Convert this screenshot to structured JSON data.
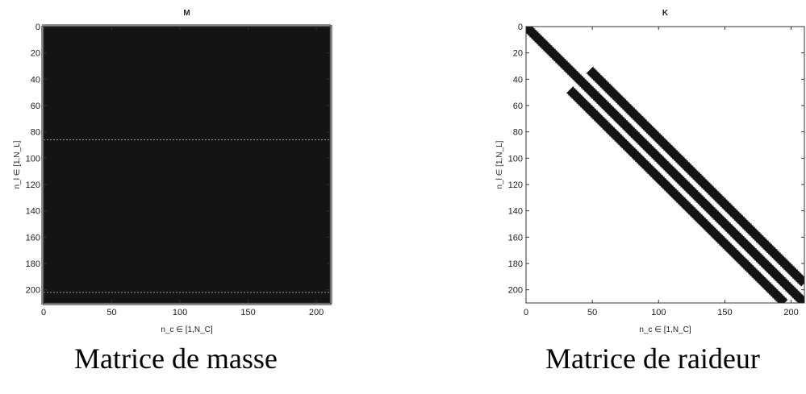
{
  "chart_data": [
    {
      "type": "heatmap",
      "title": "M",
      "xlabel": "n_c ∈ [1,N_C]",
      "ylabel": "n_l ∈ [1,N_L]",
      "xlim": [
        0,
        210
      ],
      "ylim": [
        0,
        210
      ],
      "y_reversed": true,
      "x_ticks": [
        0,
        50,
        100,
        150,
        200
      ],
      "y_ticks": [
        0,
        20,
        40,
        60,
        80,
        100,
        120,
        140,
        160,
        180,
        200
      ],
      "fill": "full",
      "blank_rows": [
        86,
        202
      ],
      "caption": "Matrice de masse"
    },
    {
      "type": "heatmap",
      "title": "K",
      "xlabel": "n_c ∈ [1,N_C]",
      "ylabel": "n_l ∈ [1,N_L]",
      "xlim": [
        0,
        210
      ],
      "ylim": [
        0,
        210
      ],
      "y_reversed": true,
      "x_ticks": [
        0,
        50,
        100,
        150,
        200
      ],
      "y_ticks": [
        0,
        20,
        40,
        60,
        80,
        100,
        120,
        140,
        160,
        180,
        200
      ],
      "fill": "bands",
      "bands": [
        {
          "x0": 0,
          "y0": 0,
          "x1": 210,
          "y1": 210
        },
        {
          "x0": 48,
          "y0": 33,
          "x1": 210,
          "y1": 195
        },
        {
          "x0": 33,
          "y0": 48,
          "x1": 195,
          "y1": 210
        }
      ],
      "caption": "Matrice de raideur"
    }
  ],
  "colors": {
    "matrix_fill": "#141414",
    "axis": "#333333"
  }
}
